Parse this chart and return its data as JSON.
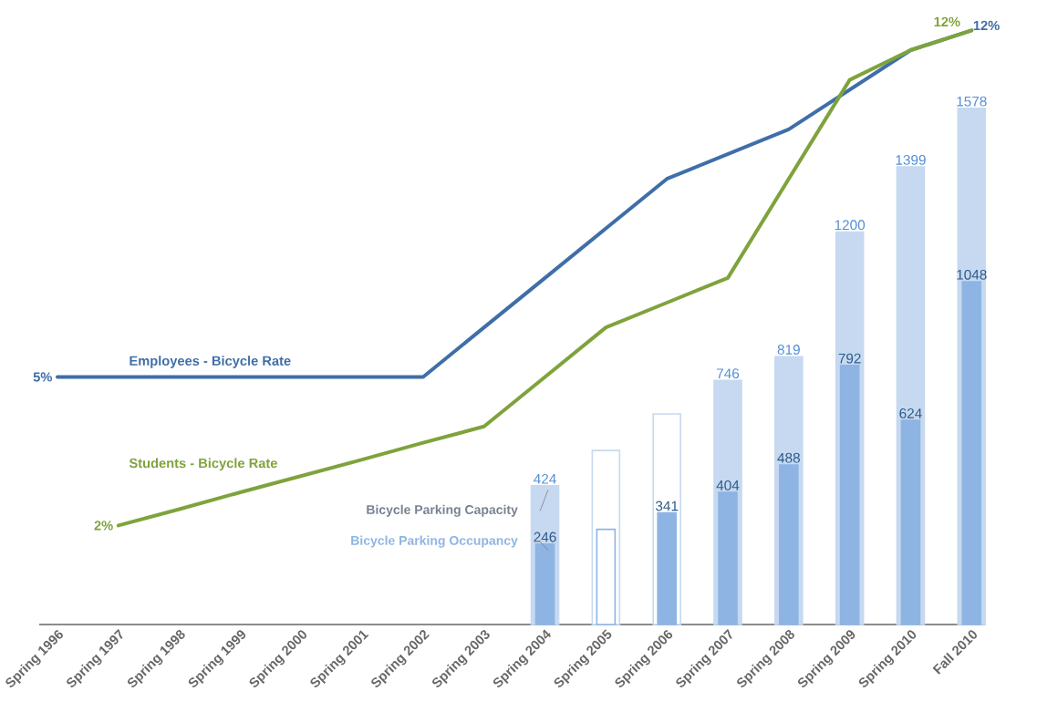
{
  "chart_data": {
    "type": "bar",
    "categories": [
      "Spring 1996",
      "Spring 1997",
      "Spring 1998",
      "Spring 1999",
      "Spring 2000",
      "Spring 2001",
      "Spring 2002",
      "Spring 2003",
      "Spring 2004",
      "Spring 2005",
      "Spring 2006",
      "Spring 2007",
      "Spring 2008",
      "Spring 2009",
      "Spring 2010",
      "Fall 2010"
    ],
    "tick_labels": "x",
    "series": [
      {
        "name": "Bicycle Parking Capacity",
        "color": "#c6d9f0",
        "colors": [
          "#c6d9f0",
          "#c6d9f0",
          "#c6d9f0",
          "#c6d9f0",
          "#c6d9f0",
          "#c6d9f0",
          "#c6d9f0",
          "#c6d9f0",
          "#c6d9f0",
          "#ffffff",
          "#ffffff",
          "#c6d9f0",
          "#c6d9f0",
          "#c6d9f0",
          "#c6d9f0",
          "#c6d9f0"
        ],
        "values": [
          null,
          null,
          null,
          null,
          null,
          null,
          null,
          null,
          424,
          532,
          644,
          746,
          819,
          1200,
          1399,
          1578
        ],
        "value_labels": [
          null,
          null,
          null,
          null,
          null,
          null,
          null,
          null,
          "424",
          null,
          null,
          "746",
          "819",
          "1200",
          "1399",
          "1578"
        ]
      },
      {
        "name": "Bicycle Parking Occupancy",
        "color": "#8eb4e3",
        "colors": [
          "#8eb4e3",
          "#8eb4e3",
          "#8eb4e3",
          "#8eb4e3",
          "#8eb4e3",
          "#8eb4e3",
          "#8eb4e3",
          "#8eb4e3",
          "#8eb4e3",
          "#ffffff",
          "#8eb4e3",
          "#8eb4e3",
          "#8eb4e3",
          "#8eb4e3",
          "#8eb4e3",
          "#8eb4e3"
        ],
        "values": [
          null,
          null,
          null,
          null,
          null,
          null,
          null,
          null,
          246,
          291,
          341,
          404,
          488,
          792,
          624,
          1048
        ],
        "value_labels": [
          null,
          null,
          null,
          null,
          null,
          null,
          null,
          null,
          "246",
          null,
          "341",
          "404",
          "488",
          "792",
          "624",
          "1048"
        ]
      },
      {
        "name": "Employees - Bicycle Rate",
        "type": "line",
        "axis": "y2",
        "color": "#3f6ea8",
        "values": [
          5,
          5,
          5,
          5,
          5,
          5,
          5,
          6,
          7,
          8,
          9,
          9.5,
          10,
          10.8,
          11.6,
          12
        ],
        "value_labels": [
          "5%",
          null,
          null,
          null,
          null,
          null,
          null,
          null,
          null,
          null,
          null,
          null,
          null,
          null,
          null,
          "12%"
        ]
      },
      {
        "name": "Students - Bicycle Rate",
        "type": "line",
        "axis": "y2",
        "color": "#7fa33c",
        "values": [
          null,
          2,
          2.33,
          2.67,
          3,
          3.33,
          3.67,
          4,
          5,
          6,
          6.5,
          7,
          9,
          11,
          11.6,
          12
        ],
        "value_labels": [
          null,
          "2%",
          null,
          null,
          null,
          null,
          null,
          null,
          null,
          null,
          null,
          null,
          null,
          null,
          null,
          "12%"
        ]
      }
    ]
  }
}
